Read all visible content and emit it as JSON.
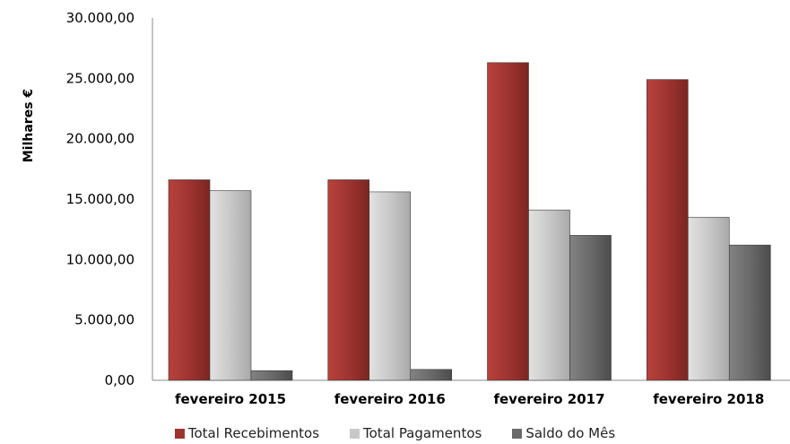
{
  "chart_data": {
    "type": "bar",
    "ylabel": "Milhares €",
    "ylim": [
      0,
      30000
    ],
    "yticks": [
      "0,00",
      "5.000,00",
      "10.000,00",
      "15.000,00",
      "20.000,00",
      "25.000,00",
      "30.000,00"
    ],
    "categories": [
      "fevereiro  2015",
      "fevereiro  2016",
      "fevereiro  2017",
      "fevereiro 2018"
    ],
    "series": [
      {
        "name": "Total Recebimentos",
        "color": "#9e3430",
        "values": [
          16600,
          16600,
          26300,
          24900
        ]
      },
      {
        "name": "Total Pagamentos",
        "color": "#c8c8c8",
        "values": [
          15700,
          15600,
          14100,
          13500
        ]
      },
      {
        "name": "Saldo do Mês",
        "color": "#6a6a6a",
        "values": [
          800,
          900,
          12000,
          11200
        ]
      }
    ],
    "legend_position": "bottom"
  }
}
